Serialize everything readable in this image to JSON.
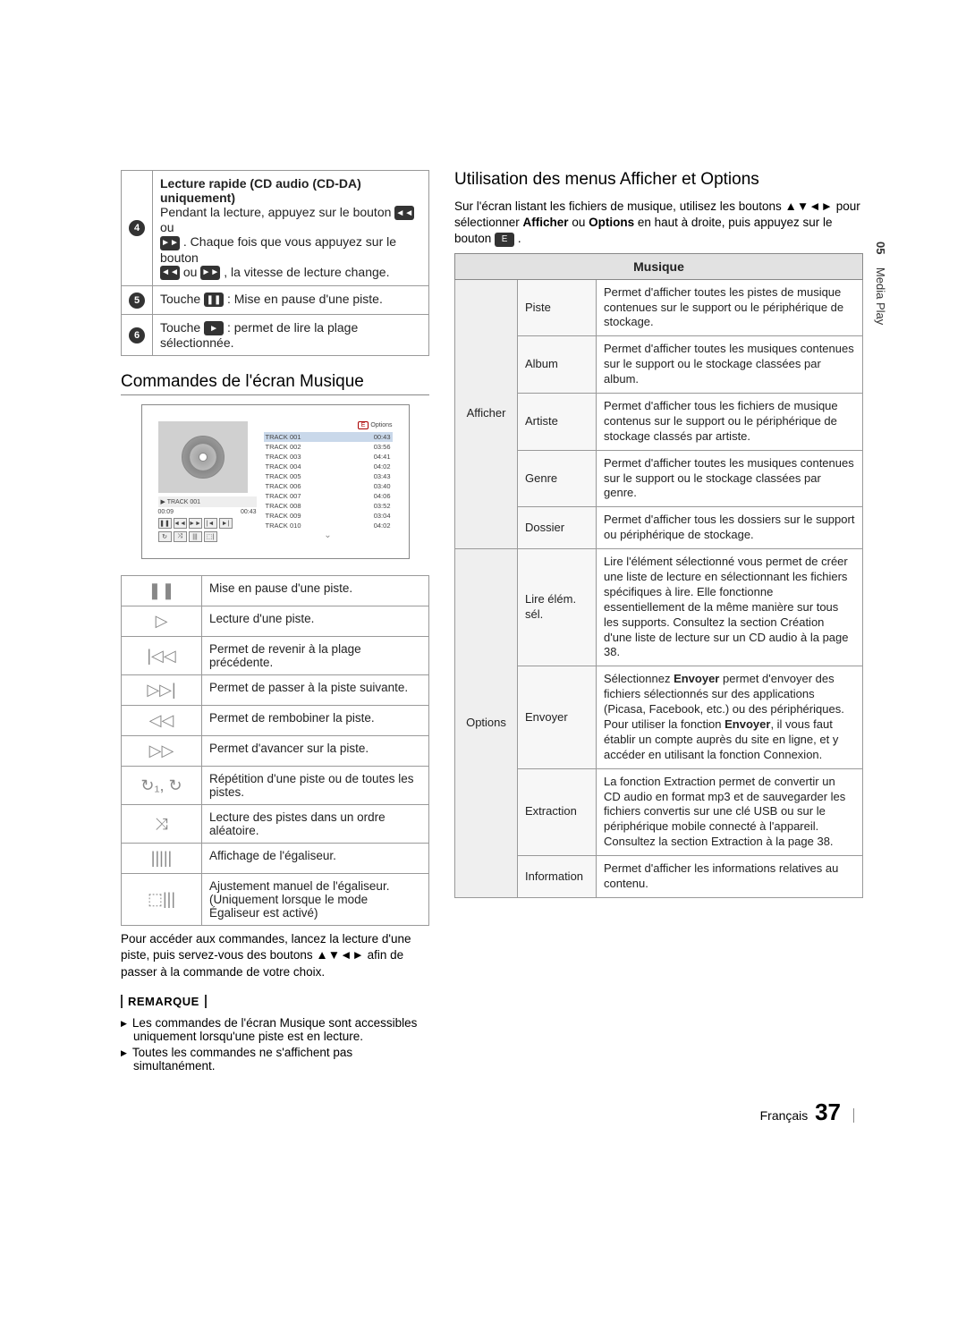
{
  "sideTab": {
    "num": "05",
    "label": "Media Play"
  },
  "leftTop": {
    "row4": {
      "title": "Lecture rapide (CD audio (CD-DA) uniquement)",
      "line1a": "Pendant la lecture, appuyez sur le bouton ",
      "line1b": " ou ",
      "line2a": ". Chaque fois que vous appuyez sur le bouton ",
      "line2b": " ou ",
      "line2c": ", la vitesse de lecture change."
    },
    "row5a": "Touche ",
    "row5b": " : Mise en pause d'une piste.",
    "row6a": "Touche ",
    "row6b": " : permet de lire la plage sélectionnée."
  },
  "section1": "Commandes de l'écran Musique",
  "player": {
    "options": "Options",
    "curTrack": "TRACK 001",
    "t1": "00:09",
    "t2": "00:43",
    "tracks": [
      {
        "n": "TRACK 001",
        "d": "00:43"
      },
      {
        "n": "TRACK 002",
        "d": "03:56"
      },
      {
        "n": "TRACK 003",
        "d": "04:41"
      },
      {
        "n": "TRACK 004",
        "d": "04:02"
      },
      {
        "n": "TRACK 005",
        "d": "03:43"
      },
      {
        "n": "TRACK 006",
        "d": "03:40"
      },
      {
        "n": "TRACK 007",
        "d": "04:06"
      },
      {
        "n": "TRACK 008",
        "d": "03:52"
      },
      {
        "n": "TRACK 009",
        "d": "03:04"
      },
      {
        "n": "TRACK 010",
        "d": "04:02"
      }
    ]
  },
  "iconsTable": [
    {
      "icon": "❚❚",
      "desc": "Mise en pause d'une piste."
    },
    {
      "icon": "▷",
      "desc": "Lecture d'une piste."
    },
    {
      "icon": "|◁◁",
      "desc": "Permet de revenir à la plage précédente."
    },
    {
      "icon": "▷▷|",
      "desc": "Permet de passer à la piste suivante."
    },
    {
      "icon": "◁◁",
      "desc": "Permet de rembobiner la piste."
    },
    {
      "icon": "▷▷",
      "desc": "Permet d'avancer sur la piste."
    },
    {
      "icon": "↻₁, ↻",
      "desc": "Répétition d'une piste ou de toutes les pistes."
    },
    {
      "icon": "⤨",
      "desc": "Lecture des pistes dans un ordre aléatoire."
    },
    {
      "icon": "|||||",
      "desc": "Affichage de l'égaliseur."
    },
    {
      "icon": "⬚|||",
      "desc": "Ajustement manuel de l'égaliseur. (Uniquement lorsque le mode Égaliseur est activé)"
    }
  ],
  "belowIcons": "Pour accéder aux commandes, lancez la lecture d'une piste, puis servez-vous des boutons ▲▼◄► afin de passer à la commande de votre choix.",
  "remarqueHdr": "REMARQUE",
  "remarques": [
    "Les commandes de l'écran Musique sont accessibles uniquement lorsqu'une piste est en lecture.",
    "Toutes les commandes ne s'affichent pas simultanément."
  ],
  "section2": "Utilisation des menus Afficher et Options",
  "rightIntroA": "Sur l'écran listant les fichiers de musique, utilisez les boutons ",
  "rightIntroArrows": "▲▼◄►",
  "rightIntroB": " pour sélectionner ",
  "rightIntroAff": "Afficher",
  "rightIntroOr": " ou ",
  "rightIntroOpt": "Options",
  "rightIntroC": " en haut à droite, puis appuyez sur le bouton ",
  "rightIntroD": ".",
  "menuHeader": "Musique",
  "afficher": {
    "label": "Afficher",
    "rows": [
      {
        "k": "Piste",
        "v": "Permet d'afficher toutes les pistes de musique contenues sur le support ou le périphérique de stockage."
      },
      {
        "k": "Album",
        "v": "Permet d'afficher toutes les musiques contenues sur le support ou le stockage classées par album."
      },
      {
        "k": "Artiste",
        "v": "Permet d'afficher tous les fichiers de musique contenus sur le support ou le périphérique de stockage classés par artiste."
      },
      {
        "k": "Genre",
        "v": "Permet d'afficher toutes les musiques contenues sur le support ou le stockage classées par genre."
      },
      {
        "k": "Dossier",
        "v": "Permet d'afficher tous les dossiers sur le support ou périphérique de stockage."
      }
    ]
  },
  "options": {
    "label": "Options",
    "rows": [
      {
        "k": "Lire élém. sél.",
        "v": "Lire l'élément sélectionné vous permet de créer une liste de lecture en sélectionnant les fichiers spécifiques à lire. Elle fonctionne essentiellement de la même manière sur tous les supports. Consultez la section Création d'une liste de lecture sur un CD audio à la page 38."
      },
      {
        "k": "Envoyer",
        "vA": "Sélectionnez ",
        "vBold1": "Envoyer",
        "vB": " permet d'envoyer des fichiers sélectionnés sur des applications (Picasa, Facebook, etc.) ou des périphériques. Pour utiliser la fonction ",
        "vBold2": "Envoyer",
        "vC": ", il vous faut établir un compte auprès du site en ligne, et y accéder en utilisant la fonction Connexion."
      },
      {
        "k": "Extraction",
        "v": "La fonction Extraction permet de convertir un CD audio en format mp3 et de sauvegarder les fichiers convertis sur une clé USB ou sur le périphérique mobile connecté à l'appareil. Consultez la section Extraction à la page 38."
      },
      {
        "k": "Information",
        "v": "Permet d'afficher les informations relatives au contenu."
      }
    ]
  },
  "footer": {
    "lang": "Français",
    "page": "37"
  }
}
